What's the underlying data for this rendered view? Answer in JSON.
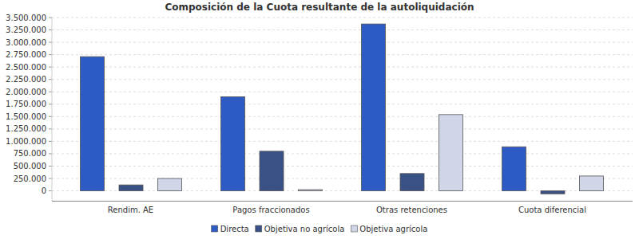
{
  "chart_data": {
    "type": "bar",
    "title": "Composición de la Cuota resultante de la autoliquidación",
    "categories": [
      "Rendim. AE",
      "Pagos fraccionados",
      "Otras retenciones",
      "Cuota diferencial"
    ],
    "series": [
      {
        "name": "Directa",
        "color": "#2e5ac4",
        "values": [
          2710000,
          1900000,
          3370000,
          890000
        ]
      },
      {
        "name": "Objetiva no agrícola",
        "color": "#3a5185",
        "values": [
          120000,
          800000,
          350000,
          -60000
        ]
      },
      {
        "name": "Objetiva agrícola",
        "color": "#d0d5e8",
        "values": [
          250000,
          25000,
          1540000,
          300000
        ]
      }
    ],
    "ylim": [
      -200000,
      3500000
    ],
    "yticks": [
      0,
      {
        "value": 250000,
        "label": "250.000"
      },
      {
        "value": 500000,
        "label": "500.000"
      },
      {
        "value": 750000,
        "label": "750.000"
      },
      {
        "value": 1000000,
        "label": "1.000.000"
      },
      {
        "value": 1250000,
        "label": "1.250.000"
      },
      {
        "value": 1500000,
        "label": "1.500.000"
      },
      {
        "value": 1750000,
        "label": "1.750.000"
      },
      {
        "value": 2000000,
        "label": "2.000.000"
      },
      {
        "value": 2250000,
        "label": "2.250.000"
      },
      {
        "value": 2500000,
        "label": "2.500.000"
      },
      {
        "value": 2750000,
        "label": "2.750.000"
      },
      {
        "value": 3000000,
        "label": "3.000.000"
      },
      {
        "value": 3250000,
        "label": "3.250.000"
      },
      {
        "value": 3500000,
        "label": "3.500.000"
      }
    ],
    "grid": true,
    "legend": "bottom"
  }
}
